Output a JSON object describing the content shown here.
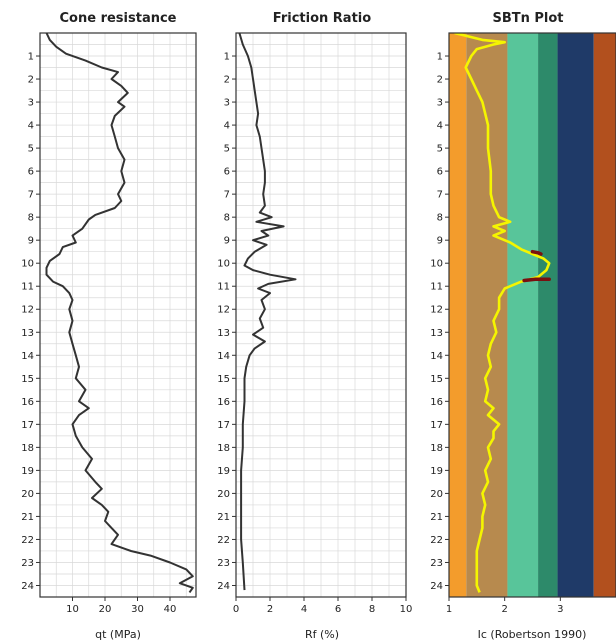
{
  "chart_data": [
    {
      "type": "line",
      "title": "Cone resistance",
      "xlabel": "qt (MPa)",
      "ylabel": "",
      "xlim": [
        0,
        48
      ],
      "ylim": [
        0,
        24.5
      ],
      "y_inverted": true,
      "grid": true,
      "xticks": [
        10,
        20,
        30,
        40
      ],
      "yticks": [
        1,
        2,
        3,
        4,
        5,
        6,
        7,
        8,
        9,
        10,
        11,
        12,
        13,
        14,
        15,
        16,
        17,
        18,
        19,
        20,
        21,
        22,
        23,
        24
      ],
      "series": [
        {
          "color": "#333333",
          "points": [
            [
              2,
              0
            ],
            [
              3,
              0.3
            ],
            [
              5,
              0.6
            ],
            [
              8,
              0.9
            ],
            [
              14,
              1.2
            ],
            [
              19,
              1.5
            ],
            [
              24,
              1.7
            ],
            [
              22,
              2.0
            ],
            [
              25,
              2.3
            ],
            [
              27,
              2.6
            ],
            [
              24,
              3.0
            ],
            [
              26,
              3.2
            ],
            [
              23,
              3.6
            ],
            [
              22,
              4.0
            ],
            [
              23,
              4.5
            ],
            [
              24,
              5.0
            ],
            [
              26,
              5.5
            ],
            [
              25,
              6.0
            ],
            [
              26,
              6.5
            ],
            [
              24,
              7.0
            ],
            [
              25,
              7.3
            ],
            [
              23,
              7.6
            ],
            [
              17,
              7.9
            ],
            [
              15,
              8.1
            ],
            [
              13,
              8.5
            ],
            [
              10,
              8.8
            ],
            [
              11,
              9.1
            ],
            [
              7,
              9.3
            ],
            [
              6,
              9.6
            ],
            [
              3,
              9.9
            ],
            [
              2,
              10.2
            ],
            [
              2,
              10.5
            ],
            [
              4,
              10.8
            ],
            [
              7,
              11.0
            ],
            [
              9,
              11.3
            ],
            [
              10,
              11.6
            ],
            [
              9,
              12.0
            ],
            [
              10,
              12.5
            ],
            [
              9,
              13.0
            ],
            [
              10,
              13.5
            ],
            [
              11,
              14.0
            ],
            [
              12,
              14.5
            ],
            [
              11,
              15.0
            ],
            [
              14,
              15.5
            ],
            [
              12,
              16.0
            ],
            [
              15,
              16.3
            ],
            [
              12,
              16.6
            ],
            [
              10,
              17.0
            ],
            [
              11,
              17.5
            ],
            [
              13,
              18.0
            ],
            [
              16,
              18.5
            ],
            [
              14,
              19.0
            ],
            [
              17,
              19.5
            ],
            [
              19,
              19.8
            ],
            [
              16,
              20.2
            ],
            [
              19,
              20.5
            ],
            [
              21,
              20.8
            ],
            [
              20,
              21.2
            ],
            [
              22,
              21.5
            ],
            [
              24,
              21.8
            ],
            [
              22,
              22.2
            ],
            [
              28,
              22.5
            ],
            [
              34,
              22.7
            ],
            [
              40,
              23.0
            ],
            [
              45,
              23.3
            ],
            [
              47,
              23.6
            ],
            [
              43,
              23.9
            ],
            [
              47,
              24.1
            ],
            [
              46,
              24.3
            ]
          ]
        }
      ]
    },
    {
      "type": "line",
      "title": "Friction Ratio",
      "xlabel": "Rf (%)",
      "ylabel": "",
      "xlim": [
        0,
        10
      ],
      "ylim": [
        0,
        24.5
      ],
      "y_inverted": true,
      "grid": true,
      "xticks": [
        0,
        2,
        4,
        6,
        8,
        10
      ],
      "yticks": [
        1,
        2,
        3,
        4,
        5,
        6,
        7,
        8,
        9,
        10,
        11,
        12,
        13,
        14,
        15,
        16,
        17,
        18,
        19,
        20,
        21,
        22,
        23,
        24
      ],
      "series": [
        {
          "color": "#333333",
          "points": [
            [
              0.2,
              0
            ],
            [
              0.4,
              0.5
            ],
            [
              0.7,
              1.0
            ],
            [
              0.9,
              1.5
            ],
            [
              1.0,
              2.0
            ],
            [
              1.1,
              2.5
            ],
            [
              1.2,
              3.0
            ],
            [
              1.3,
              3.5
            ],
            [
              1.2,
              4.0
            ],
            [
              1.4,
              4.5
            ],
            [
              1.5,
              5.0
            ],
            [
              1.6,
              5.5
            ],
            [
              1.7,
              6.0
            ],
            [
              1.7,
              6.5
            ],
            [
              1.6,
              7.0
            ],
            [
              1.7,
              7.5
            ],
            [
              1.4,
              7.8
            ],
            [
              2.1,
              8.0
            ],
            [
              1.2,
              8.2
            ],
            [
              2.8,
              8.4
            ],
            [
              1.5,
              8.6
            ],
            [
              1.9,
              8.8
            ],
            [
              1.0,
              9.0
            ],
            [
              1.8,
              9.2
            ],
            [
              1.1,
              9.5
            ],
            [
              0.7,
              9.8
            ],
            [
              0.5,
              10.1
            ],
            [
              1.0,
              10.3
            ],
            [
              2.0,
              10.5
            ],
            [
              3.5,
              10.7
            ],
            [
              1.9,
              10.9
            ],
            [
              1.3,
              11.1
            ],
            [
              2.0,
              11.3
            ],
            [
              1.5,
              11.6
            ],
            [
              1.7,
              12.0
            ],
            [
              1.4,
              12.4
            ],
            [
              1.6,
              12.8
            ],
            [
              1.0,
              13.1
            ],
            [
              1.7,
              13.4
            ],
            [
              1.1,
              13.7
            ],
            [
              0.8,
              14.0
            ],
            [
              0.6,
              14.5
            ],
            [
              0.5,
              15.0
            ],
            [
              0.5,
              16.0
            ],
            [
              0.4,
              17.0
            ],
            [
              0.4,
              18.0
            ],
            [
              0.3,
              19.0
            ],
            [
              0.3,
              20.0
            ],
            [
              0.3,
              21.0
            ],
            [
              0.3,
              22.0
            ],
            [
              0.4,
              23.0
            ],
            [
              0.5,
              24.2
            ]
          ]
        }
      ]
    },
    {
      "type": "line",
      "title": "SBTn Plot",
      "xlabel": "Ic (Robertson 1990)",
      "ylabel": "",
      "xlim": [
        1,
        4.0
      ],
      "ylim": [
        0,
        24.5
      ],
      "y_inverted": true,
      "grid": false,
      "xticks": [
        1,
        2,
        3
      ],
      "yticks": [
        1,
        2,
        3,
        4,
        5,
        6,
        7,
        8,
        9,
        10,
        11,
        12,
        13,
        14,
        15,
        16,
        17,
        18,
        19,
        20,
        21,
        22,
        23,
        24
      ],
      "zones": [
        {
          "x0": 1.0,
          "x1": 1.31,
          "color": "#f39c2c"
        },
        {
          "x0": 1.31,
          "x1": 2.05,
          "color": "#b78a4e"
        },
        {
          "x0": 2.05,
          "x1": 2.6,
          "color": "#58c59a"
        },
        {
          "x0": 2.6,
          "x1": 2.95,
          "color": "#2d8a6a"
        },
        {
          "x0": 2.95,
          "x1": 3.6,
          "color": "#1f3a68"
        },
        {
          "x0": 3.6,
          "x1": 4.0,
          "color": "#b2501e"
        }
      ],
      "series": [
        {
          "color": "#f5f500",
          "points": [
            [
              1.1,
              0.0
            ],
            [
              1.6,
              0.3
            ],
            [
              2.0,
              0.4
            ],
            [
              1.8,
              0.5
            ],
            [
              1.5,
              0.7
            ],
            [
              1.4,
              1.0
            ],
            [
              1.3,
              1.5
            ],
            [
              1.4,
              2.0
            ],
            [
              1.5,
              2.5
            ],
            [
              1.6,
              3.0
            ],
            [
              1.7,
              4.0
            ],
            [
              1.7,
              5.0
            ],
            [
              1.75,
              6.0
            ],
            [
              1.75,
              7.0
            ],
            [
              1.8,
              7.5
            ],
            [
              1.9,
              8.0
            ],
            [
              2.1,
              8.2
            ],
            [
              1.8,
              8.4
            ],
            [
              2.0,
              8.6
            ],
            [
              1.8,
              8.8
            ],
            [
              2.1,
              9.1
            ],
            [
              2.3,
              9.4
            ],
            [
              2.5,
              9.6
            ],
            [
              2.7,
              9.8
            ],
            [
              2.8,
              10.0
            ],
            [
              2.75,
              10.3
            ],
            [
              2.6,
              10.6
            ],
            [
              2.3,
              10.8
            ],
            [
              2.0,
              11.1
            ],
            [
              1.9,
              11.5
            ],
            [
              1.9,
              12.0
            ],
            [
              1.8,
              12.5
            ],
            [
              1.85,
              13.0
            ],
            [
              1.75,
              13.5
            ],
            [
              1.7,
              14.0
            ],
            [
              1.75,
              14.5
            ],
            [
              1.65,
              15.0
            ],
            [
              1.7,
              15.5
            ],
            [
              1.65,
              16.0
            ],
            [
              1.8,
              16.3
            ],
            [
              1.7,
              16.6
            ],
            [
              1.9,
              17.0
            ],
            [
              1.8,
              17.3
            ],
            [
              1.8,
              17.6
            ],
            [
              1.7,
              18.0
            ],
            [
              1.75,
              18.5
            ],
            [
              1.65,
              19.0
            ],
            [
              1.7,
              19.5
            ],
            [
              1.6,
              20.0
            ],
            [
              1.65,
              20.5
            ],
            [
              1.6,
              21.0
            ],
            [
              1.6,
              21.5
            ],
            [
              1.55,
              22.0
            ],
            [
              1.5,
              22.5
            ],
            [
              1.5,
              23.0
            ],
            [
              1.5,
              23.5
            ],
            [
              1.5,
              24.0
            ],
            [
              1.55,
              24.3
            ]
          ]
        }
      ],
      "highlights": [
        {
          "color": "#7a1010",
          "points": [
            [
              2.5,
              9.5
            ],
            [
              2.6,
              9.55
            ],
            [
              2.65,
              9.6
            ]
          ]
        },
        {
          "color": "#7a1010",
          "points": [
            [
              2.35,
              10.75
            ],
            [
              2.55,
              10.7
            ],
            [
              2.8,
              10.7
            ]
          ]
        }
      ]
    }
  ]
}
